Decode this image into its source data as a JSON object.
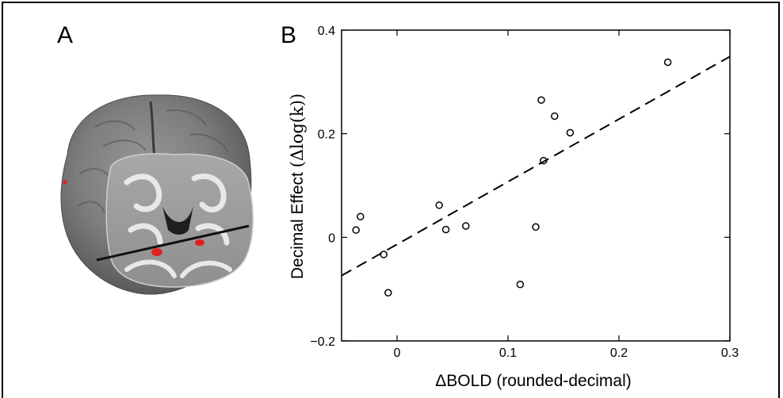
{
  "panels": {
    "a_label": "A",
    "b_label": "B"
  },
  "brain": {
    "highlight_color": "#e02020"
  },
  "chart_data": {
    "type": "scatter",
    "xlabel": "ΔBOLD (rounded-decimal)",
    "ylabel_prefix": "Decimal Effect ",
    "ylabel_math": "(Δlog(k))",
    "xlim": [
      -0.05,
      0.3
    ],
    "ylim": [
      -0.2,
      0.4
    ],
    "xticks": [
      "0",
      "0.1",
      "0.2",
      "0.3"
    ],
    "xtick_values": [
      0,
      0.1,
      0.2,
      0.3
    ],
    "yticks": [
      "−0.2",
      "0",
      "0.2",
      "0.4"
    ],
    "ytick_values": [
      -0.2,
      0,
      0.2,
      0.4
    ],
    "grid": false,
    "points": [
      {
        "x": -0.037,
        "y": 0.014
      },
      {
        "x": -0.033,
        "y": 0.04
      },
      {
        "x": -0.012,
        "y": -0.033
      },
      {
        "x": -0.008,
        "y": -0.107
      },
      {
        "x": 0.038,
        "y": 0.062
      },
      {
        "x": 0.044,
        "y": 0.015
      },
      {
        "x": 0.062,
        "y": 0.022
      },
      {
        "x": 0.111,
        "y": -0.091
      },
      {
        "x": 0.125,
        "y": 0.02
      },
      {
        "x": 0.13,
        "y": 0.265
      },
      {
        "x": 0.132,
        "y": 0.148
      },
      {
        "x": 0.142,
        "y": 0.234
      },
      {
        "x": 0.156,
        "y": 0.202
      },
      {
        "x": 0.244,
        "y": 0.338
      }
    ],
    "fit_line": {
      "x": [
        -0.05,
        0.3
      ],
      "y": [
        -0.074,
        0.349
      ],
      "style": "dashed"
    }
  }
}
